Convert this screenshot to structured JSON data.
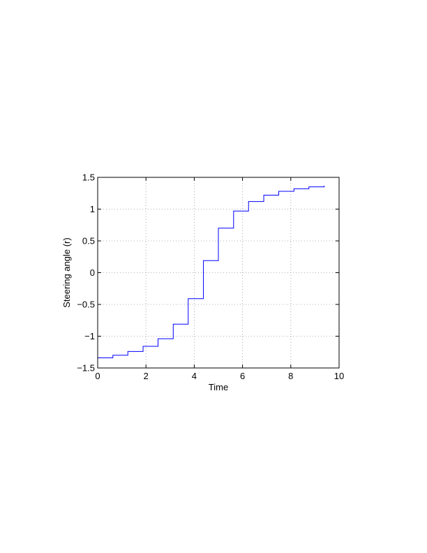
{
  "chart_data": {
    "type": "line",
    "step": true,
    "title": "",
    "xlabel": "Time",
    "ylabel": "Steering angle (r)",
    "xlim": [
      0,
      10
    ],
    "ylim": [
      -1.5,
      1.5
    ],
    "xticks": [
      0,
      2,
      4,
      6,
      8,
      10
    ],
    "yticks": [
      -1.5,
      -1,
      -0.5,
      0,
      0.5,
      1,
      1.5
    ],
    "xtick_labels": [
      "0",
      "2",
      "4",
      "6",
      "8",
      "10"
    ],
    "ytick_labels": [
      "−1.5",
      "−1",
      "−0.5",
      "0",
      "0.5",
      "1",
      "1.5"
    ],
    "grid": true,
    "series": [
      {
        "color": "#0000ff",
        "x": [
          0,
          0.63,
          1.25,
          1.88,
          2.5,
          3.13,
          3.75,
          4.38,
          5.0,
          5.63,
          6.25,
          6.88,
          7.5,
          8.13,
          8.75,
          9.38
        ],
        "y": [
          -1.34,
          -1.3,
          -1.24,
          -1.16,
          -1.04,
          -0.81,
          -0.41,
          0.19,
          0.7,
          0.97,
          1.12,
          1.22,
          1.28,
          1.32,
          1.35,
          1.37
        ]
      }
    ]
  }
}
